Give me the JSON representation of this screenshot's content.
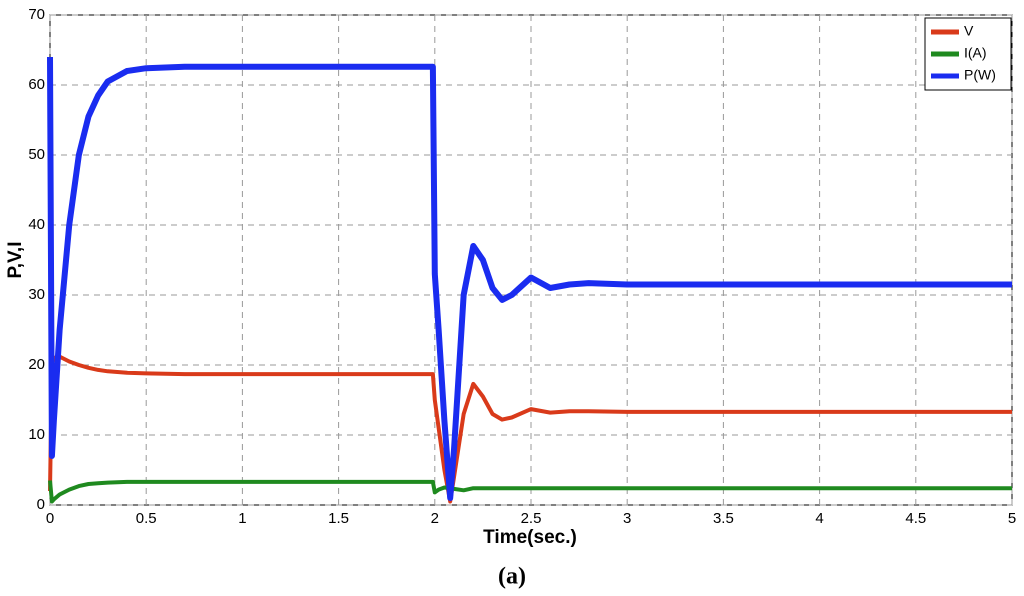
{
  "chart_data": {
    "type": "line",
    "xlabel": "Time(sec.)",
    "ylabel": "P,V,I",
    "caption": "(a)",
    "x": [
      0,
      0.01,
      0.02,
      0.05,
      0.1,
      0.15,
      0.2,
      0.25,
      0.3,
      0.4,
      0.5,
      0.7,
      1,
      1.5,
      1.99,
      2.0,
      2.02,
      2.05,
      2.08,
      2.1,
      2.15,
      2.2,
      2.25,
      2.3,
      2.35,
      2.4,
      2.5,
      2.6,
      2.7,
      2.8,
      3,
      4,
      5
    ],
    "series": [
      {
        "name": "V",
        "color": "#d93a1a",
        "values": [
          2,
          20,
          21,
          21.2,
          20.5,
          20,
          19.6,
          19.3,
          19.1,
          18.9,
          18.8,
          18.7,
          18.7,
          18.7,
          18.7,
          15,
          11,
          5,
          0.5,
          4,
          13,
          17.3,
          15.5,
          13,
          12.2,
          12.5,
          13.7,
          13.2,
          13.4,
          13.4,
          13.3,
          13.3,
          13.3
        ]
      },
      {
        "name": "I(A)",
        "color": "#1f8a1f",
        "values": [
          3.5,
          0.5,
          0.8,
          1.5,
          2.2,
          2.7,
          3.0,
          3.1,
          3.2,
          3.3,
          3.3,
          3.3,
          3.3,
          3.3,
          3.3,
          1.8,
          2.2,
          2.5,
          2.4,
          2.3,
          2.1,
          2.4,
          2.4,
          2.4,
          2.4,
          2.4,
          2.4,
          2.4,
          2.4,
          2.4,
          2.4,
          2.4,
          2.4
        ]
      },
      {
        "name": "P(W)",
        "color": "#1a2cf0",
        "values": [
          64,
          7,
          12,
          25,
          40,
          50,
          55.5,
          58.5,
          60.5,
          62,
          62.4,
          62.6,
          62.6,
          62.6,
          62.6,
          33,
          25,
          12,
          1,
          8,
          30,
          37,
          35,
          31,
          29.3,
          30,
          32.5,
          31,
          31.5,
          31.7,
          31.5,
          31.5,
          31.5
        ]
      }
    ],
    "xlim": [
      0,
      5
    ],
    "xticks": [
      0,
      0.5,
      1,
      1.5,
      2,
      2.5,
      3,
      3.5,
      4,
      4.5,
      5
    ],
    "ylim": [
      0,
      70
    ],
    "yticks": [
      0,
      10,
      20,
      30,
      40,
      50,
      60,
      70
    ],
    "grid": true,
    "legend": "upper right"
  }
}
